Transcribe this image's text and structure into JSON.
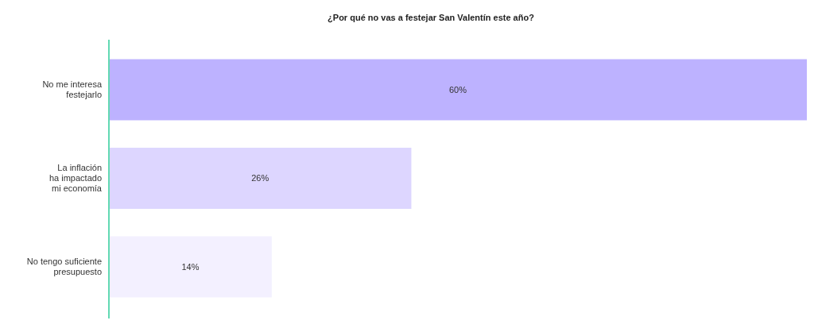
{
  "chart_data": {
    "type": "bar",
    "orientation": "horizontal",
    "title": "¿Por qué no vas a festejar San Valentín este año?",
    "categories": [
      "No me interesa\nfestejarlo",
      "La inflación\nha impactado\nmi economía",
      "No tengo suficiente\npresupuesto"
    ],
    "values": [
      60,
      26,
      14
    ],
    "colors": [
      "#bdb2ff",
      "#ddd6ff",
      "#f3f0ff"
    ],
    "data_labels": true,
    "value_labels": [
      "60%",
      "26%",
      "14%"
    ]
  }
}
